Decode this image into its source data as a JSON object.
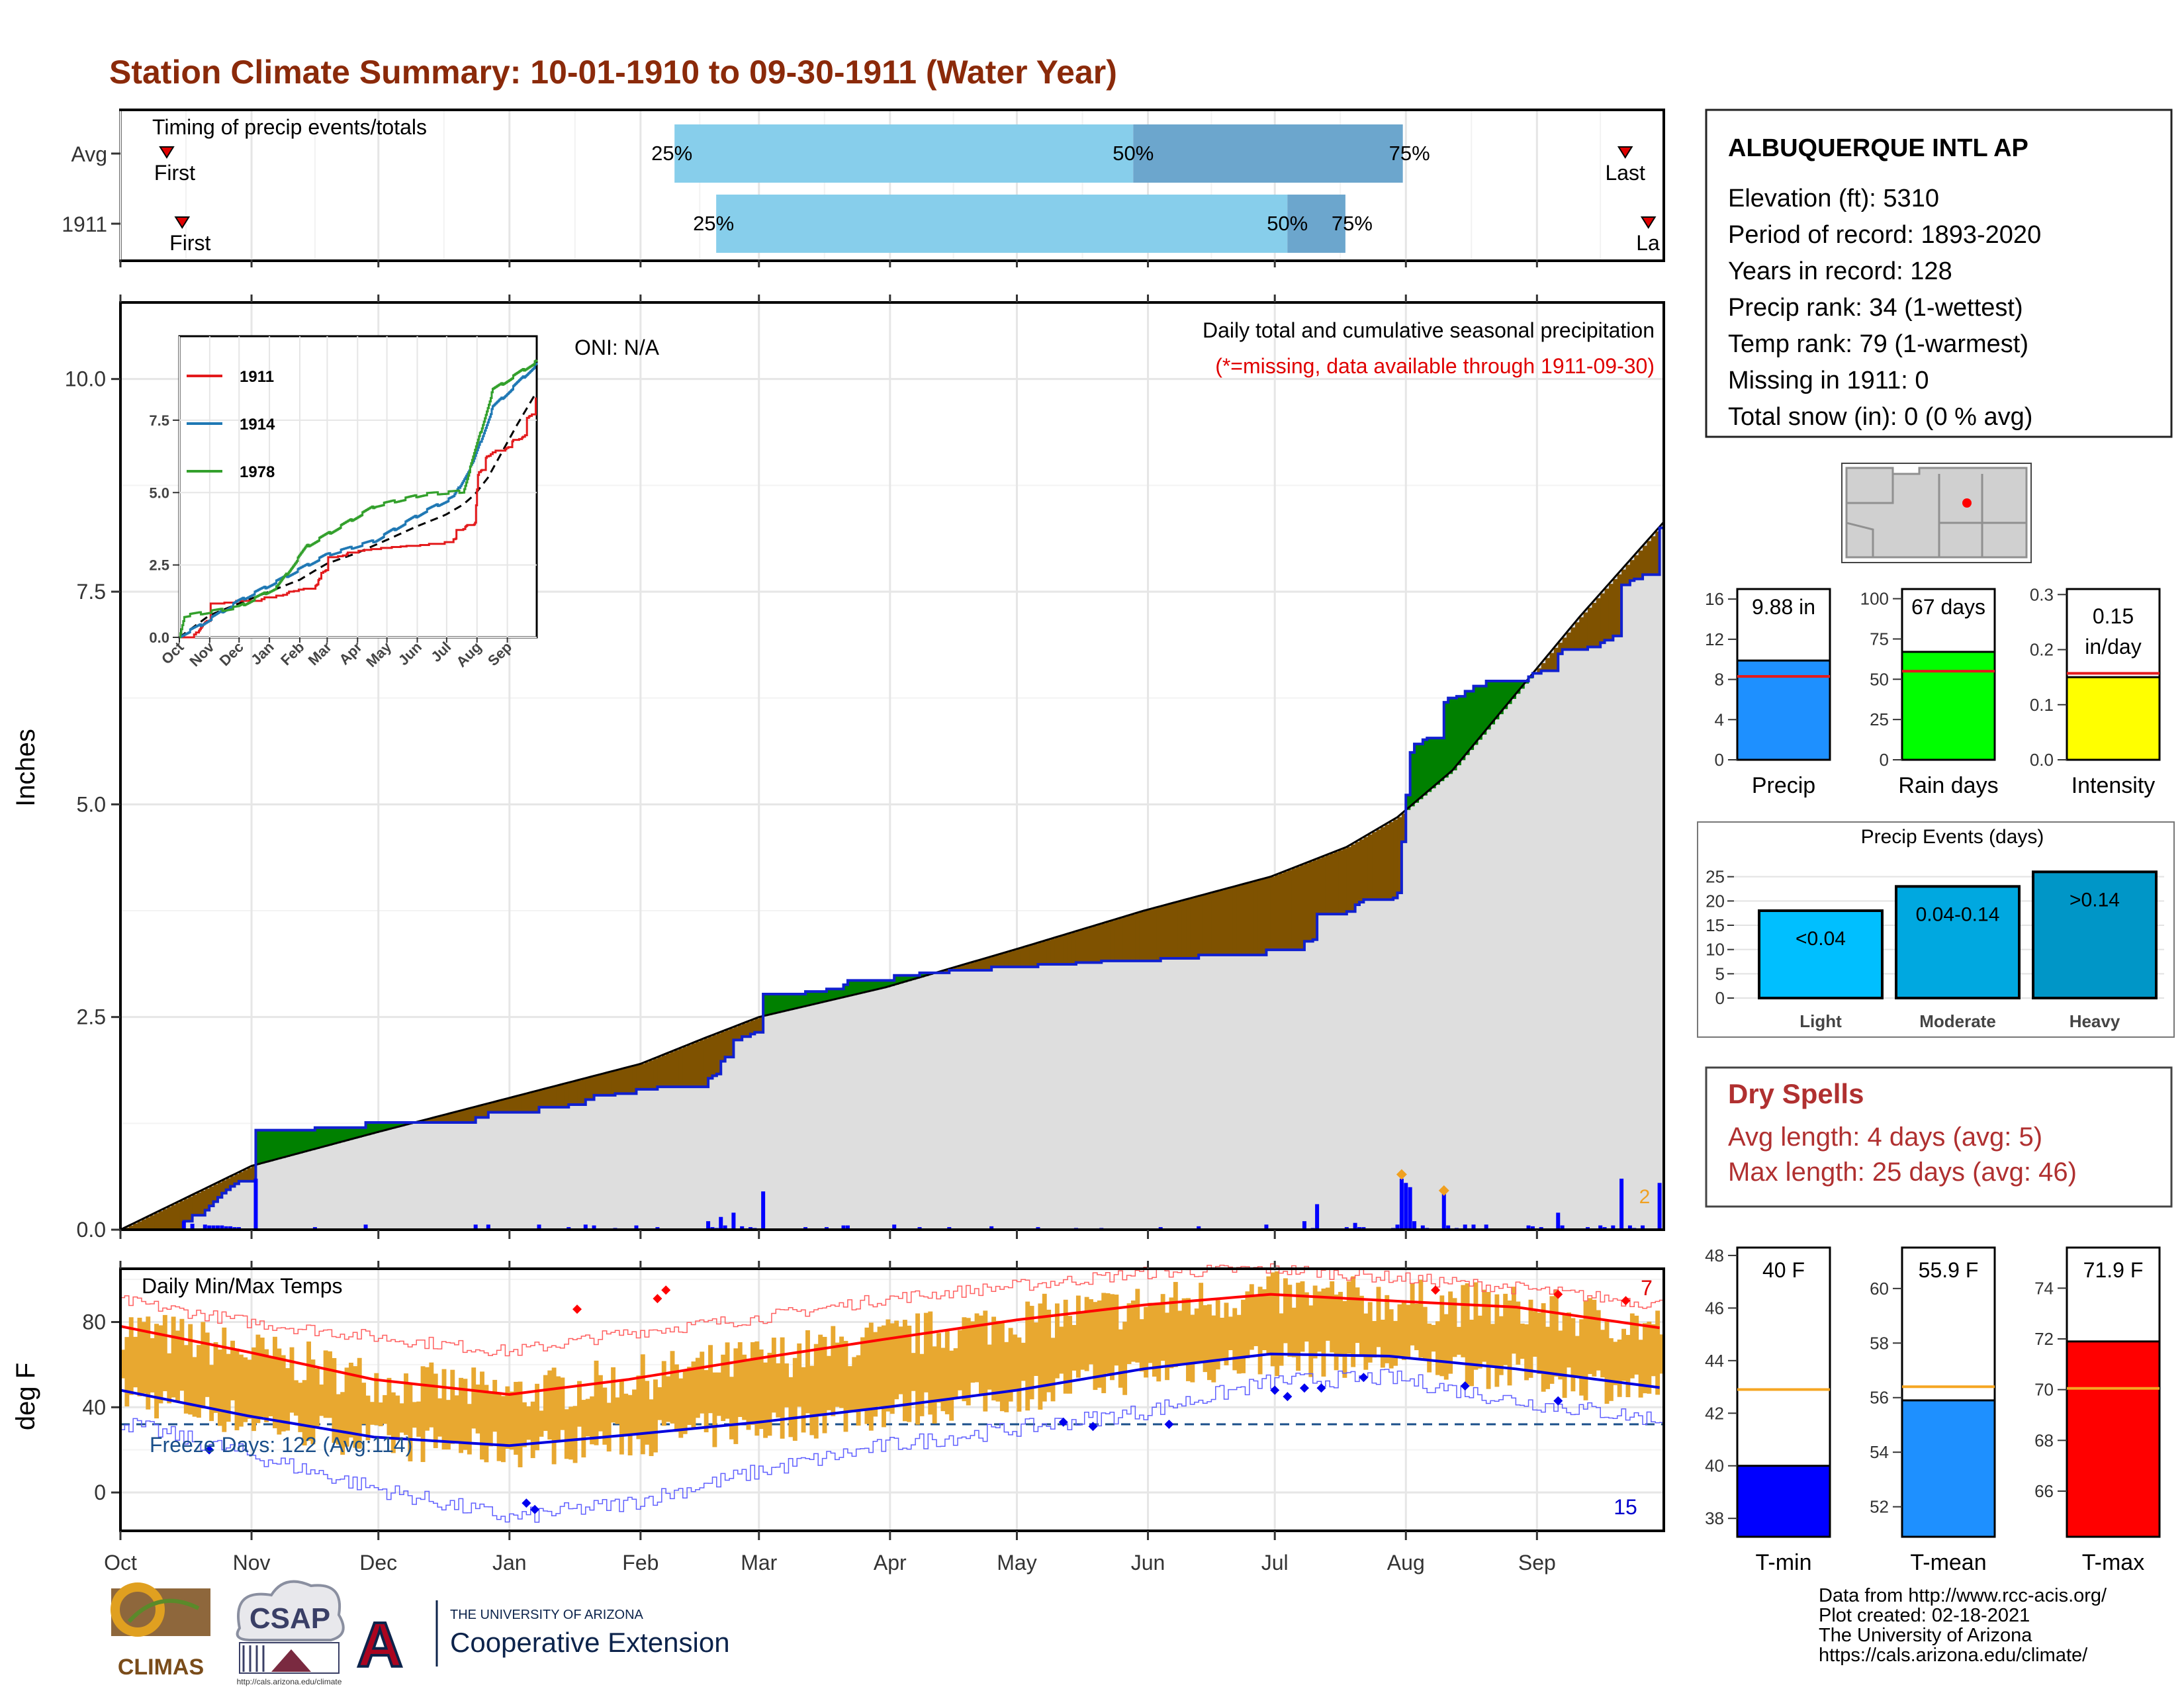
{
  "title": "Station Climate Summary: 10-01-1910 to 09-30-1911 (Water Year)",
  "timing": {
    "label": "Timing of precip events/totals",
    "rows": [
      {
        "label": "Avg",
        "first_label": "First",
        "last_label": "Last",
        "first": 0.03,
        "last": 0.975,
        "p25": 0.359,
        "p50": 0.6562,
        "p75": 0.8309,
        "p25_label": "25%",
        "p50_label": "50%",
        "p75_label": "75%"
      },
      {
        "label": "1911",
        "first_label": "First",
        "last_label": "La",
        "first": 0.04,
        "last": 0.99,
        "p25": 0.386,
        "p50": 0.7561,
        "p75": 0.7937,
        "p25_label": "25%",
        "p50_label": "50%",
        "p75_label": "75%"
      }
    ]
  },
  "precip": {
    "ylabel": "Inches",
    "yticks": [
      "0.0",
      "2.5",
      "5.0",
      "7.5",
      "10.0"
    ],
    "ymax": 10.9,
    "oni": "ONI: N/A",
    "caption": "Daily total and cumulative seasonal precipitation",
    "missing_note": "(*=missing, data available through 1911-09-30)",
    "count_label": "2",
    "colors": {
      "above": "#008000",
      "below": "#7f5200",
      "normal": "#dedede",
      "line": "#1020d0"
    }
  },
  "inset": {
    "yticks": [
      "0.0",
      "2.5",
      "5.0",
      "7.5"
    ],
    "months": [
      "Oct",
      "Nov",
      "Dec",
      "Jan",
      "Feb",
      "Mar",
      "Apr",
      "May",
      "Jun",
      "Jul",
      "Aug",
      "Sep"
    ],
    "legend": [
      {
        "label": "1911",
        "color": "#e31a1c"
      },
      {
        "label": "1914",
        "color": "#1f78b4"
      },
      {
        "label": "1978",
        "color": "#33a02c"
      }
    ]
  },
  "temps": {
    "label": "Daily Min/Max Temps",
    "ylabel": "deg F",
    "yticks": [
      "0",
      "40",
      "80"
    ],
    "freeze_label": "Freeze Days: 122 (Avg:114)",
    "max_count": "7",
    "min_count": "15"
  },
  "months": [
    "Oct",
    "Nov",
    "Dec",
    "Jan",
    "Feb",
    "Mar",
    "Apr",
    "May",
    "Jun",
    "Jul",
    "Aug",
    "Sep"
  ],
  "station": {
    "name": "ALBUQUERQUE INTL AP",
    "lines": [
      "Elevation (ft): 5310",
      "Period of record: 1893-2020",
      "Years in record: 128",
      "Precip rank: 34 (1-wettest)",
      "Temp rank: 79 (1-warmest)",
      "Missing in 1911: 0",
      "Total snow (in): 0 (0 % avg)"
    ]
  },
  "mini_bars": [
    {
      "name": "Precip",
      "value_label": "9.88 in",
      "value_label2": "",
      "value": 9.88,
      "avg": 8.3,
      "ymax": 17,
      "ticks": [
        "0",
        "4",
        "8",
        "12",
        "16"
      ],
      "tickvals": [
        0,
        4,
        8,
        12,
        16
      ],
      "color": "#1e90ff",
      "avg_color": "#e41a1c"
    },
    {
      "name": "Rain days",
      "value_label": "67 days",
      "value_label2": "",
      "value": 67,
      "avg": 55,
      "ymax": 106,
      "ticks": [
        "0",
        "25",
        "50",
        "75",
        "100"
      ],
      "tickvals": [
        0,
        25,
        50,
        75,
        100
      ],
      "color": "#00ff00",
      "avg_color": "#e41a1c"
    },
    {
      "name": "Intensity",
      "value_label": "0.15",
      "value_label2": "in/day",
      "value": 0.15,
      "avg": 0.157,
      "ymax": 0.31,
      "ticks": [
        "0.0",
        "0.1",
        "0.2",
        "0.3"
      ],
      "tickvals": [
        0,
        0.1,
        0.2,
        0.3
      ],
      "color": "#ffff00",
      "avg_color": "#e41a1c"
    }
  ],
  "events": {
    "title": "Precip Events (days)",
    "ymax": 27,
    "ticks": [
      "0",
      "5",
      "10",
      "15",
      "20",
      "25"
    ],
    "tickvals": [
      0,
      5,
      10,
      15,
      20,
      25
    ],
    "bars": [
      {
        "name": "Light",
        "value_label": "<0.04",
        "value": 18,
        "color": "#00bfff"
      },
      {
        "name": "Moderate",
        "value_label": "0.04-0.14",
        "value": 23,
        "color": "#00a8e0"
      },
      {
        "name": "Heavy",
        "value_label": ">0.14",
        "value": 26,
        "color": "#0096c7"
      }
    ]
  },
  "dry_spells": {
    "title": "Dry Spells",
    "line1": "Avg length: 4 days (avg: 5)",
    "line2": "Max length: 25 days (avg: 46)"
  },
  "temp_bars": [
    {
      "name": "T-min",
      "value_label": "40 F",
      "value": 40,
      "avg": 42.9,
      "ymin": 37.3,
      "ymax": 48.3,
      "ticks": [
        "38",
        "40",
        "42",
        "44",
        "46",
        "48"
      ],
      "tickvals": [
        38,
        40,
        42,
        44,
        46,
        48
      ],
      "color": "#0000ff"
    },
    {
      "name": "T-mean",
      "value_label": "55.9 F",
      "value": 55.9,
      "avg": 56.4,
      "ymin": 50.9,
      "ymax": 61.5,
      "ticks": [
        "52",
        "54",
        "56",
        "58",
        "60"
      ],
      "tickvals": [
        52,
        54,
        56,
        58,
        60
      ],
      "color": "#1e90ff"
    },
    {
      "name": "T-max",
      "value_label": "71.9 F",
      "value": 71.9,
      "avg": 70.05,
      "ymin": 64.2,
      "ymax": 75.6,
      "ticks": [
        "66",
        "68",
        "70",
        "72",
        "74"
      ],
      "tickvals": [
        66,
        68,
        70,
        72,
        74
      ],
      "color": "#ff0000"
    }
  ],
  "temp_avg_color": "#f5a623",
  "credits": [
    "Data from http://www.rcc-acis.org/",
    "Plot created: 02-18-2021",
    "The University of Arizona",
    "https://cals.arizona.edu/climate/"
  ],
  "logos": {
    "climas": "CLIMAS",
    "csap": "CSAP",
    "csap_url": "http://cals.arizona.edu/climate",
    "ua_letter": "A",
    "ua_line1": "THE UNIVERSITY OF ARIZONA",
    "ua_line2": "Cooperative Extension"
  }
}
